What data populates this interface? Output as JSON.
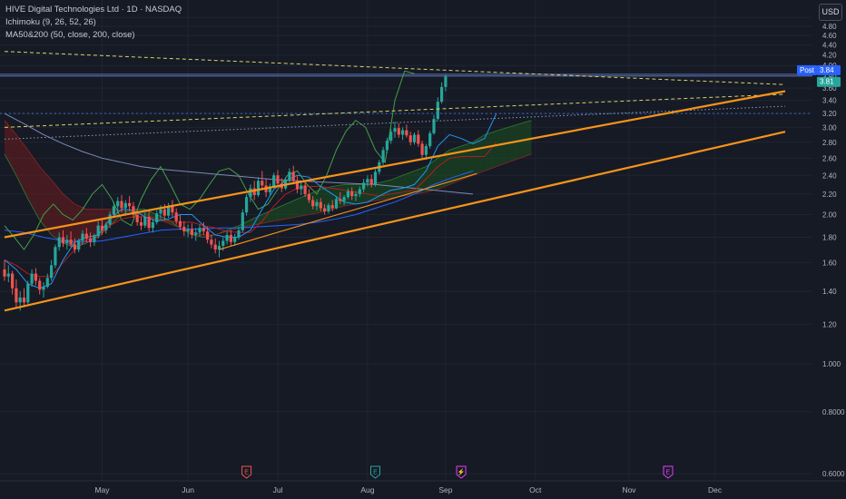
{
  "header": {
    "title": "HIVE Digital Technologies Ltd · 1D · NASDAQ",
    "indicator1": "Ichimoku (9, 26, 52, 26)",
    "indicator2": "MA50&200 (50, close, 200, close)"
  },
  "currency_button": "USD",
  "price_labels": {
    "post_tag": "Post",
    "post_price": "3.84",
    "last_price": "3.81"
  },
  "colors": {
    "background": "#161a25",
    "up": "#26a69a",
    "down": "#ef5350",
    "channel": "#f7931a",
    "ma50": "#2962ff",
    "ma200": "#7b8ab8",
    "tenkan": "#2196f3",
    "kijun": "#b71c1c",
    "chikou": "#43a047",
    "cloud_bull": "#1b5e20",
    "cloud_bear": "#7f1d1d",
    "earnings": "#ef5350",
    "earnings_green": "#26a69a",
    "dividend": "#e040fb",
    "post_tag": "#2962ff",
    "last_tag": "#26a69a"
  },
  "chart_data": {
    "type": "candlestick",
    "y_scale": "log",
    "ylim": [
      0.58,
      5.2
    ],
    "y_ticks": [
      "5.00",
      "4.80",
      "4.60",
      "4.40",
      "4.20",
      "4.00",
      "3.80",
      "3.60",
      "3.40",
      "3.20",
      "3.00",
      "2.80",
      "2.60",
      "2.40",
      "2.20",
      "2.00",
      "1.80",
      "1.60",
      "1.40",
      "1.20",
      "1.000",
      "0.8000",
      "0.6000"
    ],
    "x_labels": [
      "May",
      "Jun",
      "Jul",
      "Aug",
      "Sep",
      "Oct",
      "Nov",
      "Dec"
    ],
    "x_label_index": [
      25,
      47,
      70,
      93,
      113,
      136,
      160,
      182
    ],
    "last_index": 121,
    "candles": [
      {
        "o": 1.55,
        "h": 1.62,
        "l": 1.47,
        "c": 1.5
      },
      {
        "o": 1.5,
        "h": 1.58,
        "l": 1.46,
        "c": 1.52
      },
      {
        "o": 1.52,
        "h": 1.54,
        "l": 1.38,
        "c": 1.42
      },
      {
        "o": 1.42,
        "h": 1.48,
        "l": 1.3,
        "c": 1.33
      },
      {
        "o": 1.33,
        "h": 1.4,
        "l": 1.28,
        "c": 1.36
      },
      {
        "o": 1.36,
        "h": 1.42,
        "l": 1.3,
        "c": 1.33
      },
      {
        "o": 1.33,
        "h": 1.47,
        "l": 1.32,
        "c": 1.45
      },
      {
        "o": 1.45,
        "h": 1.55,
        "l": 1.43,
        "c": 1.52
      },
      {
        "o": 1.52,
        "h": 1.56,
        "l": 1.44,
        "c": 1.47
      },
      {
        "o": 1.47,
        "h": 1.49,
        "l": 1.38,
        "c": 1.41
      },
      {
        "o": 1.41,
        "h": 1.46,
        "l": 1.36,
        "c": 1.43
      },
      {
        "o": 1.43,
        "h": 1.52,
        "l": 1.42,
        "c": 1.49
      },
      {
        "o": 1.49,
        "h": 1.62,
        "l": 1.47,
        "c": 1.58
      },
      {
        "o": 1.58,
        "h": 1.74,
        "l": 1.56,
        "c": 1.72
      },
      {
        "o": 1.72,
        "h": 1.84,
        "l": 1.69,
        "c": 1.8
      },
      {
        "o": 1.8,
        "h": 1.86,
        "l": 1.72,
        "c": 1.75
      },
      {
        "o": 1.75,
        "h": 1.82,
        "l": 1.7,
        "c": 1.78
      },
      {
        "o": 1.78,
        "h": 1.85,
        "l": 1.72,
        "c": 1.74
      },
      {
        "o": 1.74,
        "h": 1.79,
        "l": 1.67,
        "c": 1.7
      },
      {
        "o": 1.7,
        "h": 1.79,
        "l": 1.68,
        "c": 1.77
      },
      {
        "o": 1.77,
        "h": 1.86,
        "l": 1.74,
        "c": 1.83
      },
      {
        "o": 1.83,
        "h": 1.88,
        "l": 1.76,
        "c": 1.79
      },
      {
        "o": 1.79,
        "h": 1.84,
        "l": 1.72,
        "c": 1.76
      },
      {
        "o": 1.76,
        "h": 1.83,
        "l": 1.73,
        "c": 1.81
      },
      {
        "o": 1.81,
        "h": 1.94,
        "l": 1.79,
        "c": 1.9
      },
      {
        "o": 1.9,
        "h": 1.96,
        "l": 1.82,
        "c": 1.86
      },
      {
        "o": 1.86,
        "h": 1.93,
        "l": 1.83,
        "c": 1.91
      },
      {
        "o": 1.91,
        "h": 2.03,
        "l": 1.88,
        "c": 2.0
      },
      {
        "o": 2.0,
        "h": 2.12,
        "l": 1.97,
        "c": 2.08
      },
      {
        "o": 2.08,
        "h": 2.17,
        "l": 2.01,
        "c": 2.13
      },
      {
        "o": 2.13,
        "h": 2.19,
        "l": 2.02,
        "c": 2.06
      },
      {
        "o": 2.06,
        "h": 2.14,
        "l": 2.0,
        "c": 2.11
      },
      {
        "o": 2.11,
        "h": 2.18,
        "l": 2.04,
        "c": 2.08
      },
      {
        "o": 2.08,
        "h": 2.12,
        "l": 1.97,
        "c": 2.0
      },
      {
        "o": 2.0,
        "h": 2.05,
        "l": 1.9,
        "c": 1.93
      },
      {
        "o": 1.93,
        "h": 1.98,
        "l": 1.86,
        "c": 1.9
      },
      {
        "o": 1.9,
        "h": 2.02,
        "l": 1.88,
        "c": 1.98
      },
      {
        "o": 1.98,
        "h": 2.05,
        "l": 1.85,
        "c": 1.88
      },
      {
        "o": 1.88,
        "h": 1.96,
        "l": 1.84,
        "c": 1.93
      },
      {
        "o": 1.93,
        "h": 2.04,
        "l": 1.91,
        "c": 2.01
      },
      {
        "o": 2.01,
        "h": 2.09,
        "l": 1.96,
        "c": 2.05
      },
      {
        "o": 2.05,
        "h": 2.1,
        "l": 1.95,
        "c": 1.99
      },
      {
        "o": 1.99,
        "h": 2.11,
        "l": 1.97,
        "c": 2.08
      },
      {
        "o": 2.08,
        "h": 2.14,
        "l": 1.98,
        "c": 2.02
      },
      {
        "o": 2.02,
        "h": 2.06,
        "l": 1.91,
        "c": 1.94
      },
      {
        "o": 1.94,
        "h": 2.0,
        "l": 1.86,
        "c": 1.89
      },
      {
        "o": 1.89,
        "h": 1.94,
        "l": 1.81,
        "c": 1.85
      },
      {
        "o": 1.85,
        "h": 1.91,
        "l": 1.8,
        "c": 1.87
      },
      {
        "o": 1.87,
        "h": 1.92,
        "l": 1.79,
        "c": 1.82
      },
      {
        "o": 1.82,
        "h": 1.88,
        "l": 1.77,
        "c": 1.84
      },
      {
        "o": 1.84,
        "h": 1.91,
        "l": 1.81,
        "c": 1.88
      },
      {
        "o": 1.88,
        "h": 1.93,
        "l": 1.82,
        "c": 1.85
      },
      {
        "o": 1.85,
        "h": 1.89,
        "l": 1.75,
        "c": 1.78
      },
      {
        "o": 1.78,
        "h": 1.82,
        "l": 1.71,
        "c": 1.74
      },
      {
        "o": 1.74,
        "h": 1.79,
        "l": 1.67,
        "c": 1.7
      },
      {
        "o": 1.7,
        "h": 1.77,
        "l": 1.64,
        "c": 1.73
      },
      {
        "o": 1.73,
        "h": 1.8,
        "l": 1.69,
        "c": 1.77
      },
      {
        "o": 1.77,
        "h": 1.85,
        "l": 1.74,
        "c": 1.82
      },
      {
        "o": 1.82,
        "h": 1.86,
        "l": 1.73,
        "c": 1.76
      },
      {
        "o": 1.76,
        "h": 1.83,
        "l": 1.73,
        "c": 1.8
      },
      {
        "o": 1.8,
        "h": 1.89,
        "l": 1.78,
        "c": 1.86
      },
      {
        "o": 1.86,
        "h": 2.05,
        "l": 1.84,
        "c": 2.02
      },
      {
        "o": 2.02,
        "h": 2.2,
        "l": 1.99,
        "c": 2.17
      },
      {
        "o": 2.17,
        "h": 2.3,
        "l": 2.12,
        "c": 2.26
      },
      {
        "o": 2.26,
        "h": 2.34,
        "l": 2.14,
        "c": 2.19
      },
      {
        "o": 2.19,
        "h": 2.38,
        "l": 2.17,
        "c": 2.34
      },
      {
        "o": 2.34,
        "h": 2.45,
        "l": 2.24,
        "c": 2.29
      },
      {
        "o": 2.29,
        "h": 2.36,
        "l": 2.17,
        "c": 2.22
      },
      {
        "o": 2.22,
        "h": 2.31,
        "l": 2.19,
        "c": 2.28
      },
      {
        "o": 2.28,
        "h": 2.43,
        "l": 2.26,
        "c": 2.4
      },
      {
        "o": 2.4,
        "h": 2.46,
        "l": 2.27,
        "c": 2.31
      },
      {
        "o": 2.31,
        "h": 2.37,
        "l": 2.22,
        "c": 2.26
      },
      {
        "o": 2.26,
        "h": 2.38,
        "l": 2.24,
        "c": 2.35
      },
      {
        "o": 2.35,
        "h": 2.48,
        "l": 2.32,
        "c": 2.44
      },
      {
        "o": 2.44,
        "h": 2.51,
        "l": 2.3,
        "c": 2.34
      },
      {
        "o": 2.34,
        "h": 2.39,
        "l": 2.21,
        "c": 2.25
      },
      {
        "o": 2.25,
        "h": 2.33,
        "l": 2.19,
        "c": 2.29
      },
      {
        "o": 2.29,
        "h": 2.33,
        "l": 2.17,
        "c": 2.2
      },
      {
        "o": 2.2,
        "h": 2.25,
        "l": 2.11,
        "c": 2.14
      },
      {
        "o": 2.14,
        "h": 2.18,
        "l": 2.05,
        "c": 2.08
      },
      {
        "o": 2.08,
        "h": 2.15,
        "l": 2.04,
        "c": 2.12
      },
      {
        "o": 2.12,
        "h": 2.16,
        "l": 2.03,
        "c": 2.06
      },
      {
        "o": 2.06,
        "h": 2.1,
        "l": 2.0,
        "c": 2.03
      },
      {
        "o": 2.03,
        "h": 2.11,
        "l": 2.01,
        "c": 2.09
      },
      {
        "o": 2.09,
        "h": 2.14,
        "l": 2.03,
        "c": 2.06
      },
      {
        "o": 2.06,
        "h": 2.18,
        "l": 2.05,
        "c": 2.15
      },
      {
        "o": 2.15,
        "h": 2.22,
        "l": 2.1,
        "c": 2.13
      },
      {
        "o": 2.13,
        "h": 2.19,
        "l": 2.09,
        "c": 2.17
      },
      {
        "o": 2.17,
        "h": 2.26,
        "l": 2.15,
        "c": 2.23
      },
      {
        "o": 2.23,
        "h": 2.27,
        "l": 2.14,
        "c": 2.18
      },
      {
        "o": 2.18,
        "h": 2.23,
        "l": 2.13,
        "c": 2.2
      },
      {
        "o": 2.2,
        "h": 2.28,
        "l": 2.17,
        "c": 2.25
      },
      {
        "o": 2.25,
        "h": 2.36,
        "l": 2.22,
        "c": 2.32
      },
      {
        "o": 2.32,
        "h": 2.4,
        "l": 2.28,
        "c": 2.36
      },
      {
        "o": 2.36,
        "h": 2.41,
        "l": 2.27,
        "c": 2.3
      },
      {
        "o": 2.3,
        "h": 2.47,
        "l": 2.28,
        "c": 2.44
      },
      {
        "o": 2.44,
        "h": 2.58,
        "l": 2.41,
        "c": 2.55
      },
      {
        "o": 2.55,
        "h": 2.74,
        "l": 2.52,
        "c": 2.7
      },
      {
        "o": 2.7,
        "h": 2.86,
        "l": 2.66,
        "c": 2.82
      },
      {
        "o": 2.82,
        "h": 2.98,
        "l": 2.78,
        "c": 2.94
      },
      {
        "o": 2.94,
        "h": 3.08,
        "l": 2.86,
        "c": 2.99
      },
      {
        "o": 2.99,
        "h": 3.06,
        "l": 2.86,
        "c": 2.9
      },
      {
        "o": 2.9,
        "h": 3.0,
        "l": 2.83,
        "c": 2.96
      },
      {
        "o": 2.96,
        "h": 3.04,
        "l": 2.86,
        "c": 2.89
      },
      {
        "o": 2.89,
        "h": 2.94,
        "l": 2.76,
        "c": 2.8
      },
      {
        "o": 2.8,
        "h": 2.93,
        "l": 2.77,
        "c": 2.9
      },
      {
        "o": 2.9,
        "h": 2.96,
        "l": 2.74,
        "c": 2.78
      },
      {
        "o": 2.78,
        "h": 2.82,
        "l": 2.6,
        "c": 2.64
      },
      {
        "o": 2.64,
        "h": 2.78,
        "l": 2.58,
        "c": 2.75
      },
      {
        "o": 2.75,
        "h": 2.95,
        "l": 2.72,
        "c": 2.92
      },
      {
        "o": 2.92,
        "h": 3.18,
        "l": 2.9,
        "c": 3.12
      },
      {
        "o": 3.12,
        "h": 3.45,
        "l": 3.1,
        "c": 3.38
      },
      {
        "o": 3.38,
        "h": 3.7,
        "l": 3.35,
        "c": 3.62
      },
      {
        "o": 3.62,
        "h": 3.84,
        "l": 3.55,
        "c": 3.81
      }
    ],
    "ma50": {
      "start": 0,
      "values": [
        1.86,
        1.84,
        1.8,
        1.77,
        1.76,
        1.77,
        1.8,
        1.83,
        1.86,
        1.87,
        1.87,
        1.88,
        1.88,
        1.89,
        1.9,
        1.91,
        1.93,
        1.96,
        2.0,
        2.06,
        2.12,
        2.2,
        2.3,
        2.38,
        2.45
      ]
    },
    "ma200": {
      "start": 0,
      "values": [
        3.2,
        3.05,
        2.9,
        2.78,
        2.68,
        2.6,
        2.55,
        2.5,
        2.47,
        2.45,
        2.43,
        2.41,
        2.39,
        2.37,
        2.35,
        2.34,
        2.33,
        2.32,
        2.31,
        2.3,
        2.28,
        2.26,
        2.24,
        2.22,
        2.2
      ]
    },
    "tenkan": {
      "start": 0,
      "values": [
        1.62,
        1.55,
        1.45,
        1.42,
        1.45,
        1.62,
        1.76,
        1.8,
        1.82,
        1.96,
        2.05,
        2.04,
        1.98,
        1.94,
        1.96,
        2.0,
        2.0,
        1.9,
        1.82,
        1.8,
        1.8,
        1.86,
        2.05,
        2.25,
        2.34,
        2.4,
        2.38,
        2.28,
        2.2,
        2.12,
        2.1,
        2.12,
        2.18,
        2.24,
        2.26,
        2.3,
        2.45,
        2.75,
        2.9,
        2.85,
        2.78,
        2.85,
        3.2
      ]
    },
    "kijun": {
      "start": 0,
      "values": [
        1.62,
        1.58,
        1.52,
        1.5,
        1.5,
        1.6,
        1.7,
        1.78,
        1.8,
        1.9,
        1.96,
        1.98,
        1.98,
        1.96,
        1.94,
        1.93,
        1.93,
        1.9,
        1.88,
        1.85,
        1.84,
        1.84,
        1.94,
        2.08,
        2.2,
        2.26,
        2.28,
        2.28,
        2.26,
        2.24,
        2.22,
        2.2,
        2.18,
        2.2,
        2.22,
        2.24,
        2.36,
        2.5,
        2.6,
        2.62,
        2.62,
        2.62,
        2.8
      ]
    },
    "chikou": {
      "start": 0,
      "values": [
        1.9,
        1.8,
        1.7,
        1.82,
        2.0,
        2.1,
        2.0,
        1.95,
        2.05,
        2.2,
        2.3,
        2.15,
        1.95,
        1.9,
        2.15,
        2.35,
        2.5,
        2.3,
        2.1,
        2.05,
        2.15,
        2.3,
        2.45,
        2.48,
        2.4,
        2.2,
        2.05,
        2.1,
        2.25,
        2.4,
        2.45,
        2.3,
        2.2,
        2.4,
        2.7,
        2.95,
        3.1,
        3.0,
        2.7,
        2.55,
        3.4,
        3.9,
        3.85
      ]
    },
    "cloud": {
      "start": 0,
      "a": [
        2.65,
        2.4,
        2.15,
        1.95,
        1.82,
        1.75,
        1.72,
        1.75,
        1.82,
        1.9,
        2.0,
        2.05,
        2.05,
        2.0,
        1.95,
        1.88,
        1.82,
        1.8,
        1.82,
        1.86,
        1.9,
        1.95,
        2.0,
        2.05,
        2.1,
        2.15,
        2.2,
        2.25,
        2.28,
        2.3,
        2.3,
        2.3,
        2.32,
        2.35,
        2.4,
        2.45,
        2.5,
        2.6,
        2.7,
        2.75,
        2.8,
        2.9,
        2.95,
        3.0,
        3.05,
        3.1
      ],
      "b": [
        3.1,
        2.9,
        2.7,
        2.5,
        2.35,
        2.2,
        2.1,
        2.05,
        2.05,
        2.05,
        2.04,
        2.02,
        2.0,
        1.96,
        1.92,
        1.88,
        1.84,
        1.82,
        1.82,
        1.85,
        1.88,
        1.9,
        1.92,
        1.94,
        1.96,
        1.98,
        2.0,
        2.02,
        2.05,
        2.08,
        2.1,
        2.12,
        2.14,
        2.16,
        2.18,
        2.2,
        2.22,
        2.25,
        2.3,
        2.35,
        2.4,
        2.45,
        2.5,
        2.55,
        2.6,
        2.65
      ]
    },
    "channel_lines": [
      {
        "x1": 0,
        "y1": 1.8,
        "x2": 200,
        "y2": 3.55,
        "width": 2.2
      },
      {
        "x1": 0,
        "y1": 1.28,
        "x2": 200,
        "y2": 2.94,
        "width": 2.2
      },
      {
        "x1": 55,
        "y1": 1.7,
        "x2": 121,
        "y2": 2.42,
        "width": 1.1
      }
    ],
    "dashed_lines": [
      {
        "x1": 0,
        "y1": 4.27,
        "x2": 200,
        "y2": 3.66,
        "color": "#d8d36a",
        "dash": "4,3"
      },
      {
        "x1": 0,
        "y1": 3.0,
        "x2": 200,
        "y2": 3.5,
        "color": "#d8d36a",
        "dash": "4,3"
      },
      {
        "x1": 0,
        "y1": 2.84,
        "x2": 200,
        "y2": 3.31,
        "color": "#8e9bbf",
        "dash": "1.5,2.5"
      }
    ],
    "horizontal_lines": [
      {
        "y": 3.84,
        "color": "#5b6fb0",
        "dash": ""
      },
      {
        "y": 3.81,
        "color": "#5b6fb0",
        "dash": ""
      },
      {
        "y": 3.2,
        "color": "#3f74e0",
        "dash": "2,3"
      }
    ],
    "events": [
      {
        "type": "earnings",
        "index": 62,
        "label": "E",
        "color": "#ef5350"
      },
      {
        "type": "earnings",
        "index": 95,
        "label": "E",
        "color": "#26a69a"
      },
      {
        "type": "split",
        "index": 117,
        "label": "⚡",
        "color": "#e040fb"
      },
      {
        "type": "earnings",
        "index": 170,
        "label": "E",
        "color": "#e040fb"
      }
    ]
  }
}
